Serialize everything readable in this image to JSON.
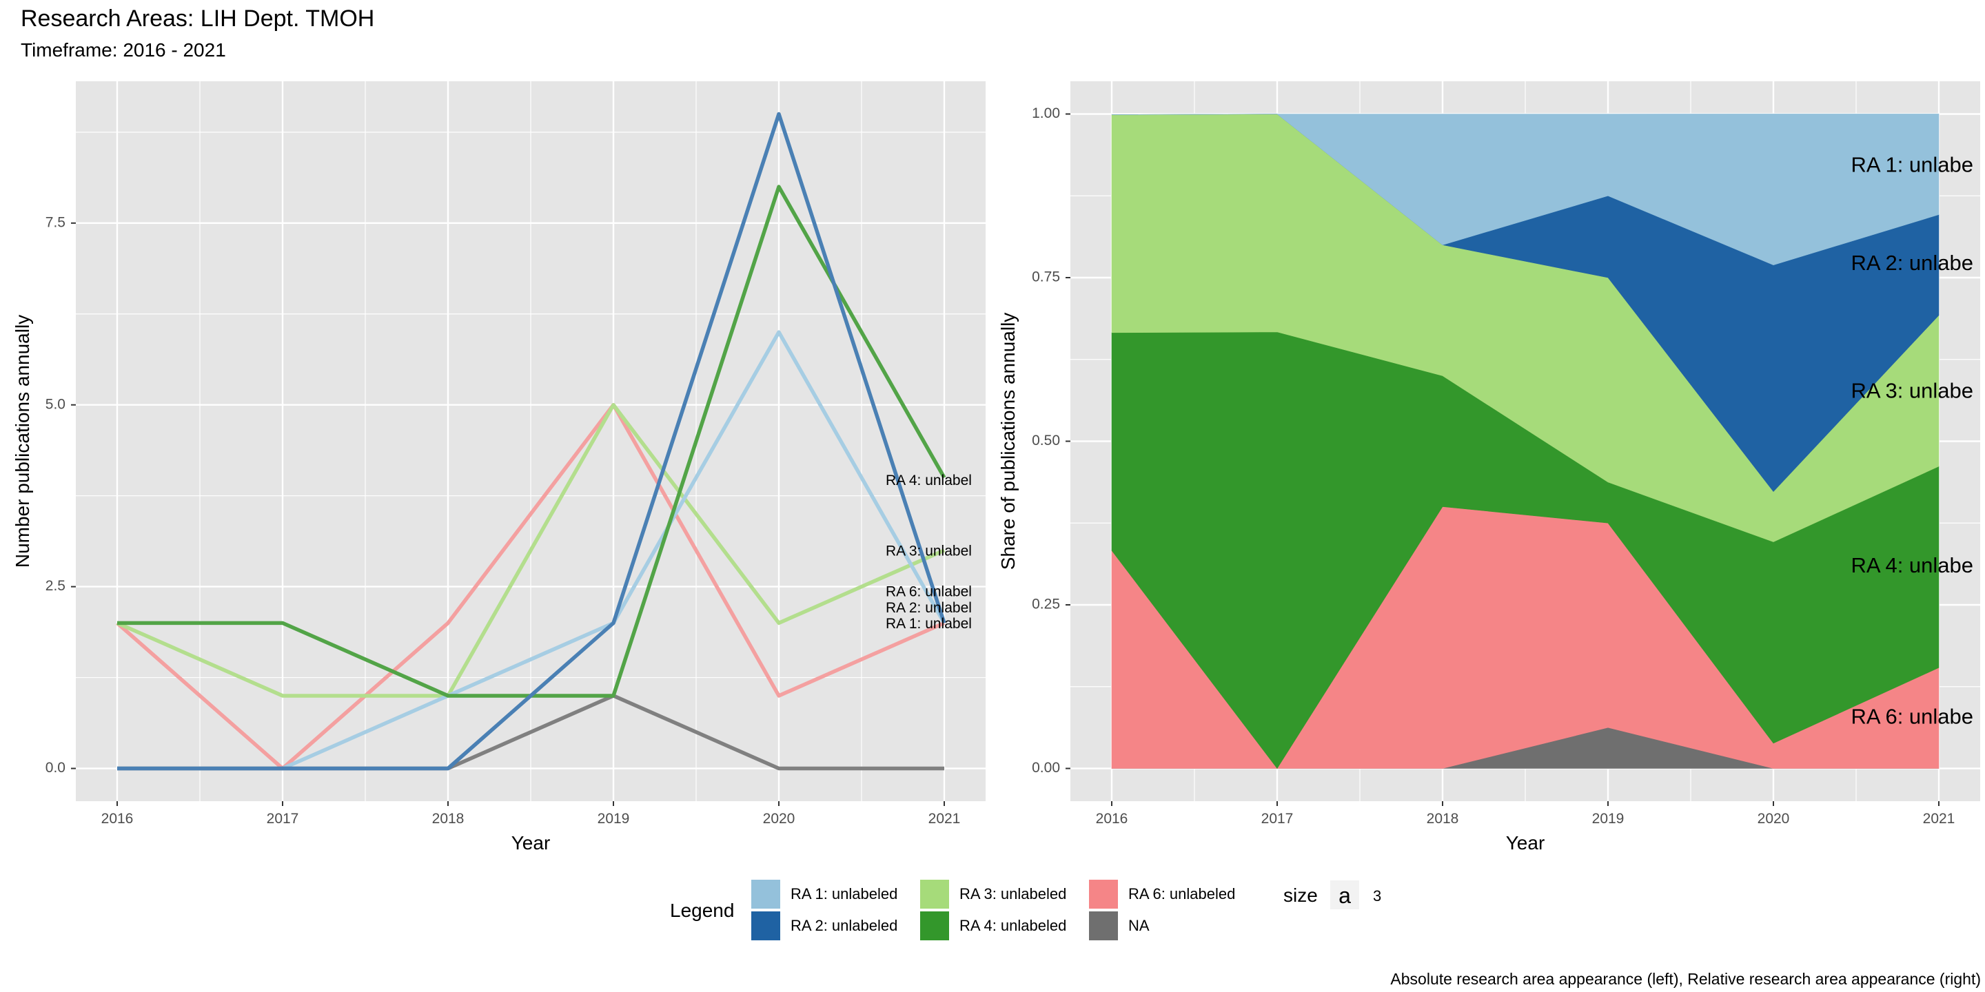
{
  "title": "Research Areas: LIH Dept. TMOH",
  "subtitle": "Timeframe: 2016 - 2021",
  "caption": "Absolute research area appearance (left), Relative research area appearance (right)",
  "colors": {
    "panel_bg": "#E5E5E5",
    "grid": "#FFFFFF",
    "axis_text": "#4D4D4D"
  },
  "legend": {
    "title": "Legend",
    "items": [
      {
        "label": "RA 1: unlabeled",
        "color": "#94C1DB"
      },
      {
        "label": "RA 2: unlabeled",
        "color": "#1F62A3"
      },
      {
        "label": "RA 3: unlabeled",
        "color": "#A6DB7A"
      },
      {
        "label": "RA 4: unlabeled",
        "color": "#33972B"
      },
      {
        "label": "RA 6: unlabeled",
        "color": "#F58587"
      },
      {
        "label": "NA",
        "color": "#6F6F6F"
      }
    ],
    "size_title": "size",
    "size_key_glyph": "a",
    "size_value": "3"
  },
  "chart_data": [
    {
      "type": "line",
      "xlabel": "Year",
      "ylabel": "Number publications annually",
      "x": [
        2016,
        2017,
        2018,
        2019,
        2020,
        2021
      ],
      "xlim": [
        2015.75,
        2021.25
      ],
      "ylim": [
        -0.45,
        9.45
      ],
      "xticks": [
        "2016",
        "2017",
        "2018",
        "2019",
        "2020",
        "2021"
      ],
      "yticks": [
        0,
        2.5,
        5,
        7.5
      ],
      "ytick_labels": [
        "0.0",
        "2.5",
        "5.0",
        "7.5"
      ],
      "series": [
        {
          "name": "RA 6: unlabeled",
          "color": "#F4A0A0",
          "values": [
            2,
            0,
            2,
            5,
            1,
            2
          ]
        },
        {
          "name": "RA 3: unlabeled",
          "color": "#B3DE8D",
          "values": [
            2,
            1,
            1,
            5,
            2,
            3
          ]
        },
        {
          "name": "RA 1: unlabeled",
          "color": "#A6CDE3",
          "values": [
            0,
            0,
            1,
            2,
            6,
            2
          ]
        },
        {
          "name": "NA",
          "color": "#808080",
          "values": [
            0,
            0,
            0,
            1,
            0,
            0
          ]
        },
        {
          "name": "RA 4: unlabeled",
          "color": "#52A447",
          "values": [
            2,
            2,
            1,
            1,
            8,
            4
          ]
        },
        {
          "name": "RA 2: unlabeled",
          "color": "#4A80B4",
          "values": [
            0,
            0,
            0,
            2,
            9,
            2
          ]
        }
      ],
      "end_labels": [
        {
          "text": "RA 4: unlabel",
          "value": 3.95
        },
        {
          "text": "RA 3: unlabel",
          "value": 2.98
        },
        {
          "text": "RA 6: unlabel",
          "value": 2.42
        },
        {
          "text": "RA 2: unlabel",
          "value": 2.2
        },
        {
          "text": "RA 1: unlabel",
          "value": 1.98
        }
      ]
    },
    {
      "type": "area",
      "stacked": true,
      "xlabel": "Year",
      "ylabel": "Share of publications annually",
      "x": [
        2016,
        2017,
        2018,
        2019,
        2020,
        2021
      ],
      "xlim": [
        2015.75,
        2021.25
      ],
      "ylim": [
        -0.05,
        1.05
      ],
      "xticks": [
        "2016",
        "2017",
        "2018",
        "2019",
        "2020",
        "2021"
      ],
      "yticks": [
        0,
        0.25,
        0.5,
        0.75,
        1.0
      ],
      "ytick_labels": [
        "0.00",
        "0.25",
        "0.50",
        "0.75",
        "1.00"
      ],
      "series": [
        {
          "name": "NA",
          "color": "#6F6F6F",
          "values": [
            0,
            0,
            0,
            0.0625,
            0,
            0
          ]
        },
        {
          "name": "RA 6: unlabeled",
          "color": "#F58587",
          "values": [
            0.333,
            0,
            0.4,
            0.3125,
            0.0385,
            0.154
          ]
        },
        {
          "name": "RA 4: unlabeled",
          "color": "#33972B",
          "values": [
            0.333,
            0.667,
            0.2,
            0.0625,
            0.3077,
            0.3077
          ]
        },
        {
          "name": "RA 3: unlabeled",
          "color": "#A6DB7A",
          "values": [
            0.333,
            0.333,
            0.2,
            0.3125,
            0.0769,
            0.2308
          ]
        },
        {
          "name": "RA 2: unlabeled",
          "color": "#1F62A3",
          "values": [
            0,
            0,
            0,
            0.125,
            0.3462,
            0.1538
          ]
        },
        {
          "name": "RA 1: unlabeled",
          "color": "#94C1DB",
          "values": [
            0,
            0,
            0.2,
            0.125,
            0.2308,
            0.1538
          ]
        }
      ],
      "end_labels": [
        {
          "text": "RA 1: unlabe",
          "value": 0.92
        },
        {
          "text": "RA 2: unlabe",
          "value": 0.77
        },
        {
          "text": "RA 3: unlabe",
          "value": 0.575
        },
        {
          "text": "RA 4: unlabe",
          "value": 0.308
        },
        {
          "text": "RA 6: unlabe",
          "value": 0.077
        }
      ]
    }
  ]
}
